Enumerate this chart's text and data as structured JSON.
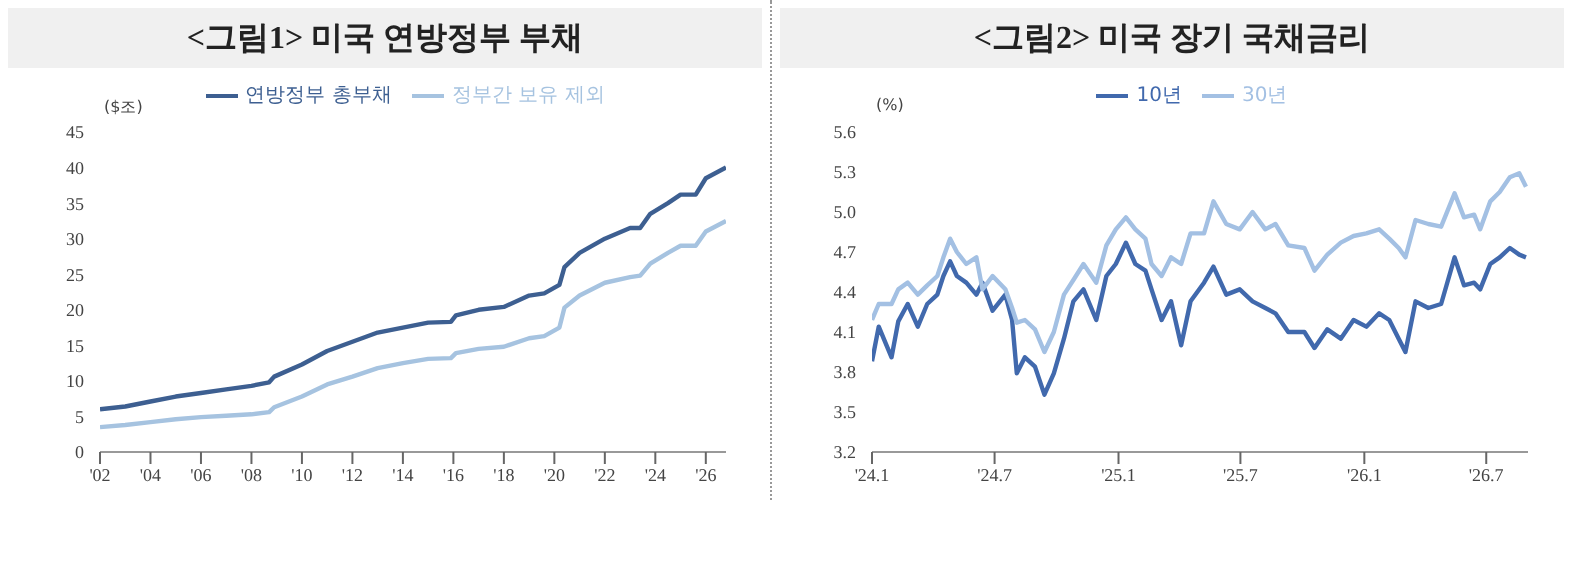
{
  "chart_data": [
    {
      "type": "line",
      "title": "<그림1> 미국 연방정부 부채",
      "ylabel": "($조)",
      "x": [
        2002,
        2003,
        2004,
        2005,
        2006,
        2007,
        2008,
        2008.7,
        2008.9,
        2010,
        2011,
        2012,
        2013,
        2014,
        2015,
        2015.9,
        2016.1,
        2017,
        2018,
        2019,
        2019.6,
        2020.2,
        2020.4,
        2021,
        2022,
        2023,
        2023.4,
        2023.8,
        2024.5,
        2025,
        2025.6,
        2026,
        2026.8
      ],
      "series": [
        {
          "name": "연방정부 총부채",
          "color": "#3d5f91",
          "values": [
            6.0,
            6.4,
            7.1,
            7.8,
            8.3,
            8.8,
            9.3,
            9.8,
            10.6,
            12.3,
            14.2,
            15.5,
            16.8,
            17.5,
            18.2,
            18.3,
            19.2,
            20.0,
            20.4,
            22.0,
            22.3,
            23.5,
            26.0,
            28.0,
            30.0,
            31.5,
            31.5,
            33.5,
            35.0,
            36.2,
            36.2,
            38.5,
            40.0
          ]
        },
        {
          "name": "정부간 보유 제외",
          "color": "#a6c3e0",
          "values": [
            3.5,
            3.8,
            4.2,
            4.6,
            4.9,
            5.1,
            5.3,
            5.6,
            6.3,
            7.8,
            9.5,
            10.6,
            11.8,
            12.5,
            13.1,
            13.2,
            13.9,
            14.5,
            14.8,
            16.0,
            16.3,
            17.5,
            20.3,
            22.0,
            23.8,
            24.6,
            24.8,
            26.5,
            28.0,
            29.0,
            29.0,
            31.0,
            32.5
          ]
        }
      ],
      "xlim": [
        2002,
        2026.8
      ],
      "xticks": [
        {
          "value": 2002,
          "label": "'02"
        },
        {
          "value": 2004,
          "label": "'04"
        },
        {
          "value": 2006,
          "label": "'06"
        },
        {
          "value": 2008,
          "label": "'08"
        },
        {
          "value": 2010,
          "label": "'10"
        },
        {
          "value": 2012,
          "label": "'12"
        },
        {
          "value": 2014,
          "label": "'14"
        },
        {
          "value": 2016,
          "label": "'16"
        },
        {
          "value": 2018,
          "label": "'18"
        },
        {
          "value": 2020,
          "label": "'20"
        },
        {
          "value": 2022,
          "label": "'22"
        },
        {
          "value": 2024,
          "label": "'24"
        },
        {
          "value": 2026,
          "label": "'26"
        }
      ],
      "ylim": [
        0,
        45
      ],
      "yticks": [
        0,
        5,
        10,
        15,
        20,
        25,
        30,
        35,
        40,
        45
      ],
      "grid": false,
      "legend": "top",
      "marker": "none",
      "line_style": "solid"
    },
    {
      "type": "line",
      "title": "<그림2> 미국 장기 국채금리",
      "ylabel": "(%)",
      "x": [
        "2024-01-01",
        "2024-01-11",
        "2024-01-30",
        "2024-02-09",
        "2024-02-23",
        "2024-03-09",
        "2024-03-23",
        "2024-04-07",
        "2024-04-16",
        "2024-04-26",
        "2024-05-06",
        "2024-05-20",
        "2024-06-04",
        "2024-06-13",
        "2024-06-28",
        "2024-07-17",
        "2024-07-27",
        "2024-08-03",
        "2024-08-15",
        "2024-08-30",
        "2024-09-13",
        "2024-09-27",
        "2024-10-12",
        "2024-10-26",
        "2024-11-10",
        "2024-11-29",
        "2024-12-14",
        "2024-12-28",
        "2025-01-12",
        "2025-01-26",
        "2025-02-10",
        "2025-02-19",
        "2025-03-06",
        "2025-03-20",
        "2025-04-04",
        "2025-04-18",
        "2025-05-08",
        "2025-05-22",
        "2025-06-10",
        "2025-06-30",
        "2025-07-19",
        "2025-08-07",
        "2025-08-22",
        "2025-09-10",
        "2025-10-04",
        "2025-10-19",
        "2025-11-07",
        "2025-11-27",
        "2025-12-16",
        "2026-01-04",
        "2026-01-23",
        "2026-02-07",
        "2026-02-21",
        "2026-03-03",
        "2026-03-18",
        "2026-04-06",
        "2026-04-25",
        "2026-05-15",
        "2026-05-29",
        "2026-06-13",
        "2026-06-22",
        "2026-07-07",
        "2026-07-21",
        "2026-08-05",
        "2026-08-19",
        "2026-08-29"
      ],
      "series": [
        {
          "name": "10년",
          "color": "#4169ad",
          "values": [
            3.88,
            4.14,
            3.91,
            4.18,
            4.31,
            4.14,
            4.31,
            4.38,
            4.52,
            4.63,
            4.52,
            4.47,
            4.38,
            4.47,
            4.26,
            4.38,
            4.19,
            3.79,
            3.91,
            3.84,
            3.63,
            3.79,
            4.05,
            4.33,
            4.42,
            4.19,
            4.52,
            4.61,
            4.77,
            4.61,
            4.56,
            4.42,
            4.19,
            4.33,
            4.0,
            4.33,
            4.47,
            4.59,
            4.38,
            4.42,
            4.33,
            4.28,
            4.24,
            4.1,
            4.1,
            3.98,
            4.12,
            4.05,
            4.19,
            4.14,
            4.24,
            4.19,
            4.05,
            3.95,
            4.33,
            4.28,
            4.31,
            4.66,
            4.45,
            4.47,
            4.42,
            4.61,
            4.66,
            4.73,
            4.68,
            4.66
          ]
        },
        {
          "name": "30년",
          "color": "#a3c0e3",
          "values": [
            4.19,
            4.31,
            4.31,
            4.42,
            4.47,
            4.38,
            4.45,
            4.52,
            4.66,
            4.8,
            4.7,
            4.61,
            4.66,
            4.42,
            4.52,
            4.42,
            4.28,
            4.17,
            4.19,
            4.12,
            3.95,
            4.1,
            4.38,
            4.49,
            4.61,
            4.47,
            4.75,
            4.87,
            4.96,
            4.87,
            4.8,
            4.61,
            4.52,
            4.66,
            4.61,
            4.84,
            4.84,
            5.08,
            4.91,
            4.87,
            5.0,
            4.87,
            4.91,
            4.75,
            4.73,
            4.56,
            4.68,
            4.77,
            4.82,
            4.84,
            4.87,
            4.8,
            4.73,
            4.66,
            4.94,
            4.91,
            4.89,
            5.14,
            4.96,
            4.98,
            4.87,
            5.08,
            5.15,
            5.26,
            5.29,
            5.19
          ]
        }
      ],
      "xlim": [
        "2024-01-01",
        "2026-09-01"
      ],
      "xticks": [
        {
          "value": "2024-01-01",
          "label": "'24.1"
        },
        {
          "value": "2024-07-01",
          "label": "'24.7"
        },
        {
          "value": "2025-01-01",
          "label": "'25.1"
        },
        {
          "value": "2025-07-01",
          "label": "'25.7"
        },
        {
          "value": "2026-01-01",
          "label": "'26.1"
        },
        {
          "value": "2026-07-01",
          "label": "'26.7"
        }
      ],
      "ylim": [
        3.2,
        5.6
      ],
      "yticks": [
        {
          "value": 3.2,
          "label": "3.2"
        },
        {
          "value": 3.5,
          "label": "3.5"
        },
        {
          "value": 3.8,
          "label": "3.8"
        },
        {
          "value": 4.1,
          "label": "4.1"
        },
        {
          "value": 4.4,
          "label": "4.4"
        },
        {
          "value": 4.7,
          "label": "4.7"
        },
        {
          "value": 5.0,
          "label": "5.0"
        },
        {
          "value": 5.3,
          "label": "5.3"
        },
        {
          "value": 5.6,
          "label": "5.6"
        }
      ],
      "grid": false,
      "legend": "top",
      "marker": "none",
      "line_style": "solid"
    }
  ]
}
